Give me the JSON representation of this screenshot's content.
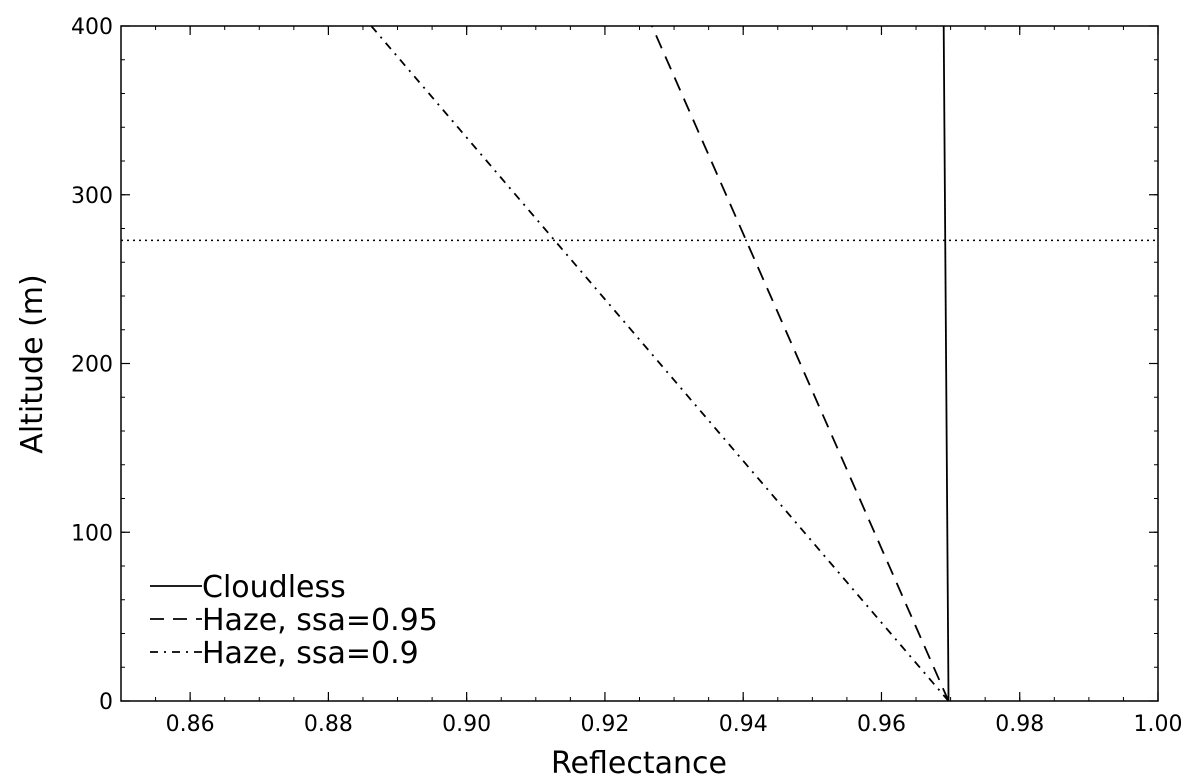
{
  "chart_data": {
    "type": "line",
    "xlabel": "Reflectance",
    "ylabel": "Altitude (m)",
    "xlim": [
      0.85,
      1.0
    ],
    "ylim": [
      0,
      400
    ],
    "xticks": [
      0.86,
      0.88,
      0.9,
      0.92,
      0.94,
      0.96,
      0.98,
      1.0
    ],
    "xtick_labels": [
      "0.86",
      "0.88",
      "0.90",
      "0.92",
      "0.94",
      "0.96",
      "0.98",
      "1.00"
    ],
    "yticks": [
      0,
      100,
      200,
      300,
      400
    ],
    "ytick_labels": [
      "0",
      "100",
      "200",
      "300",
      "400"
    ],
    "grid": false,
    "legend_position": "bottom-left",
    "reference_line": {
      "orientation": "horizontal",
      "y": 273,
      "style": "dotted"
    },
    "series": [
      {
        "name": "Cloudless",
        "style": "solid",
        "color": "#000000",
        "points": [
          [
            0.9697,
            0
          ],
          [
            0.969,
            400
          ]
        ]
      },
      {
        "name": "Haze, ssa=0.95",
        "style": "dashed",
        "color": "#000000",
        "points": [
          [
            0.9697,
            0
          ],
          [
            0.9268,
            400
          ]
        ]
      },
      {
        "name": "Haze, ssa=0.9",
        "style": "dashdot",
        "color": "#000000",
        "points": [
          [
            0.9697,
            0
          ],
          [
            0.8862,
            400
          ]
        ]
      }
    ]
  }
}
